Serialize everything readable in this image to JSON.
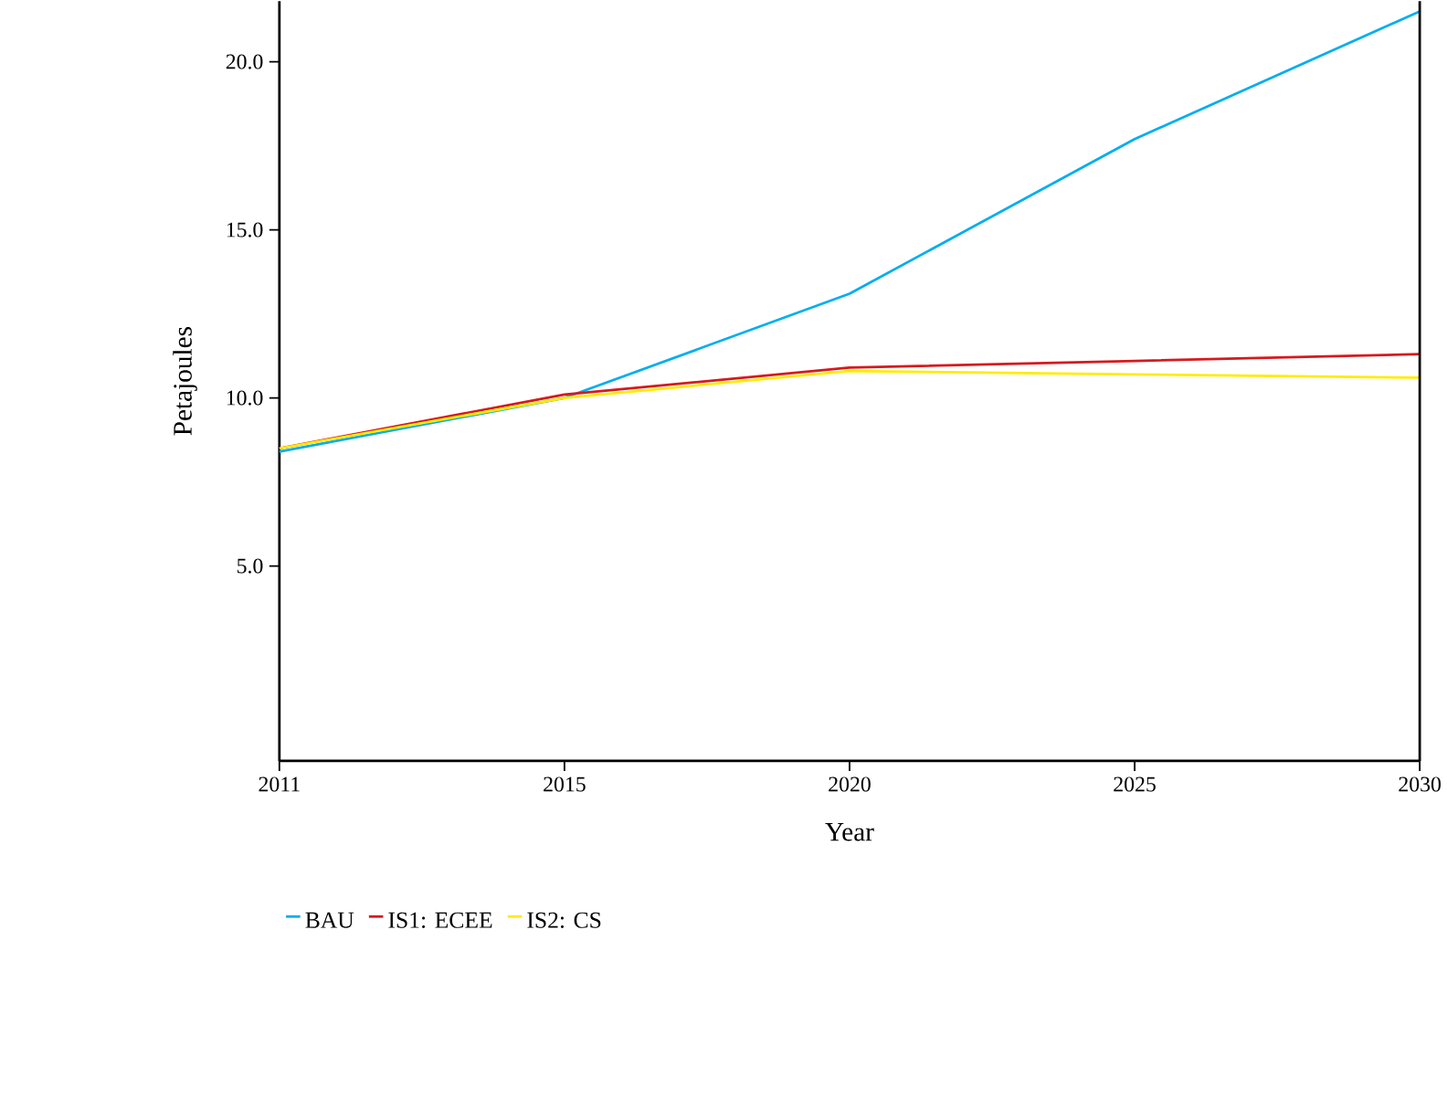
{
  "chart_data": {
    "type": "line",
    "xlabel": "Year",
    "ylabel": "Petajoules",
    "categories": [
      "2011",
      "2015",
      "2020",
      "2025",
      "2030"
    ],
    "series": [
      {
        "name": "BAU",
        "color": "#00aeef",
        "values": [
          8.4,
          10.0,
          13.1,
          17.7,
          21.5
        ]
      },
      {
        "name": "IS1: ECEE",
        "color": "#d7191c",
        "values": [
          8.5,
          10.1,
          10.9,
          11.1,
          11.3
        ]
      },
      {
        "name": "IS2: CS",
        "color": "#ffec00",
        "values": [
          8.5,
          10.0,
          10.8,
          10.7,
          10.6
        ]
      }
    ],
    "ylim": [
      -0.8,
      21.8
    ],
    "yticks": [
      {
        "value": 5,
        "label": "5.0"
      },
      {
        "value": 10,
        "label": "10.0"
      },
      {
        "value": 15,
        "label": "15.0"
      },
      {
        "value": 20,
        "label": "20.0"
      }
    ],
    "grid": false,
    "legend": "bottom",
    "marker": "none",
    "line_style": "solid"
  }
}
